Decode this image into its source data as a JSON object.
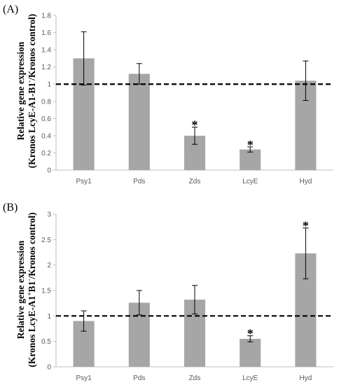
{
  "chart_data": [
    {
      "panel_label": "(A)",
      "type": "bar",
      "ylabel_line1": "Relative gene expression",
      "ylabel_line2": "(Kronos LcyE-A1-B1",
      "ylabel_sup": "-",
      "ylabel_line2_rest": "/Kronos  control)",
      "categories": [
        "Psy1",
        "Pds",
        "Zds",
        "LcyE",
        "Hyd"
      ],
      "values": [
        1.3,
        1.12,
        0.4,
        0.24,
        1.04
      ],
      "errors": [
        0.31,
        0.12,
        0.1,
        0.03,
        0.23
      ],
      "significant": [
        false,
        false,
        true,
        true,
        false
      ],
      "significance_marker": "*",
      "reference_line": 1.0,
      "ylim": [
        0,
        1.8
      ],
      "yticks": [
        "0",
        "0.2",
        "0.4",
        "0.6",
        "0.8",
        "1",
        "1.2",
        "1.4",
        "1.6",
        "1.8"
      ],
      "ytick_values": [
        0,
        0.2,
        0.4,
        0.6,
        0.8,
        1.0,
        1.2,
        1.4,
        1.6,
        1.8
      ],
      "bar_color": "#a6a6a6",
      "grid": false
    },
    {
      "panel_label": "(B)",
      "type": "bar",
      "ylabel_line1": "Relative gene expression",
      "ylabel_line2": "(Kronos LcyE-A1",
      "ylabel_sup": "+",
      "ylabel_line2_rest": "B1",
      "ylabel_sup2": "-",
      "ylabel_line2_end": "/Kronos  control)",
      "categories": [
        "Psy1",
        "Pds",
        "Zds",
        "LcyE",
        "Hyd"
      ],
      "values": [
        0.9,
        1.26,
        1.32,
        0.55,
        2.23
      ],
      "errors": [
        0.2,
        0.24,
        0.28,
        0.06,
        0.5
      ],
      "significant": [
        false,
        false,
        false,
        true,
        true
      ],
      "significance_marker": "*",
      "reference_line": 1.0,
      "ylim": [
        0,
        3
      ],
      "yticks": [
        "0",
        "0.5",
        "1",
        "1.5",
        "2",
        "2.5",
        "3"
      ],
      "ytick_values": [
        0,
        0.5,
        1,
        1.5,
        2,
        2.5,
        3
      ],
      "bar_color": "#a6a6a6",
      "grid": false
    }
  ]
}
